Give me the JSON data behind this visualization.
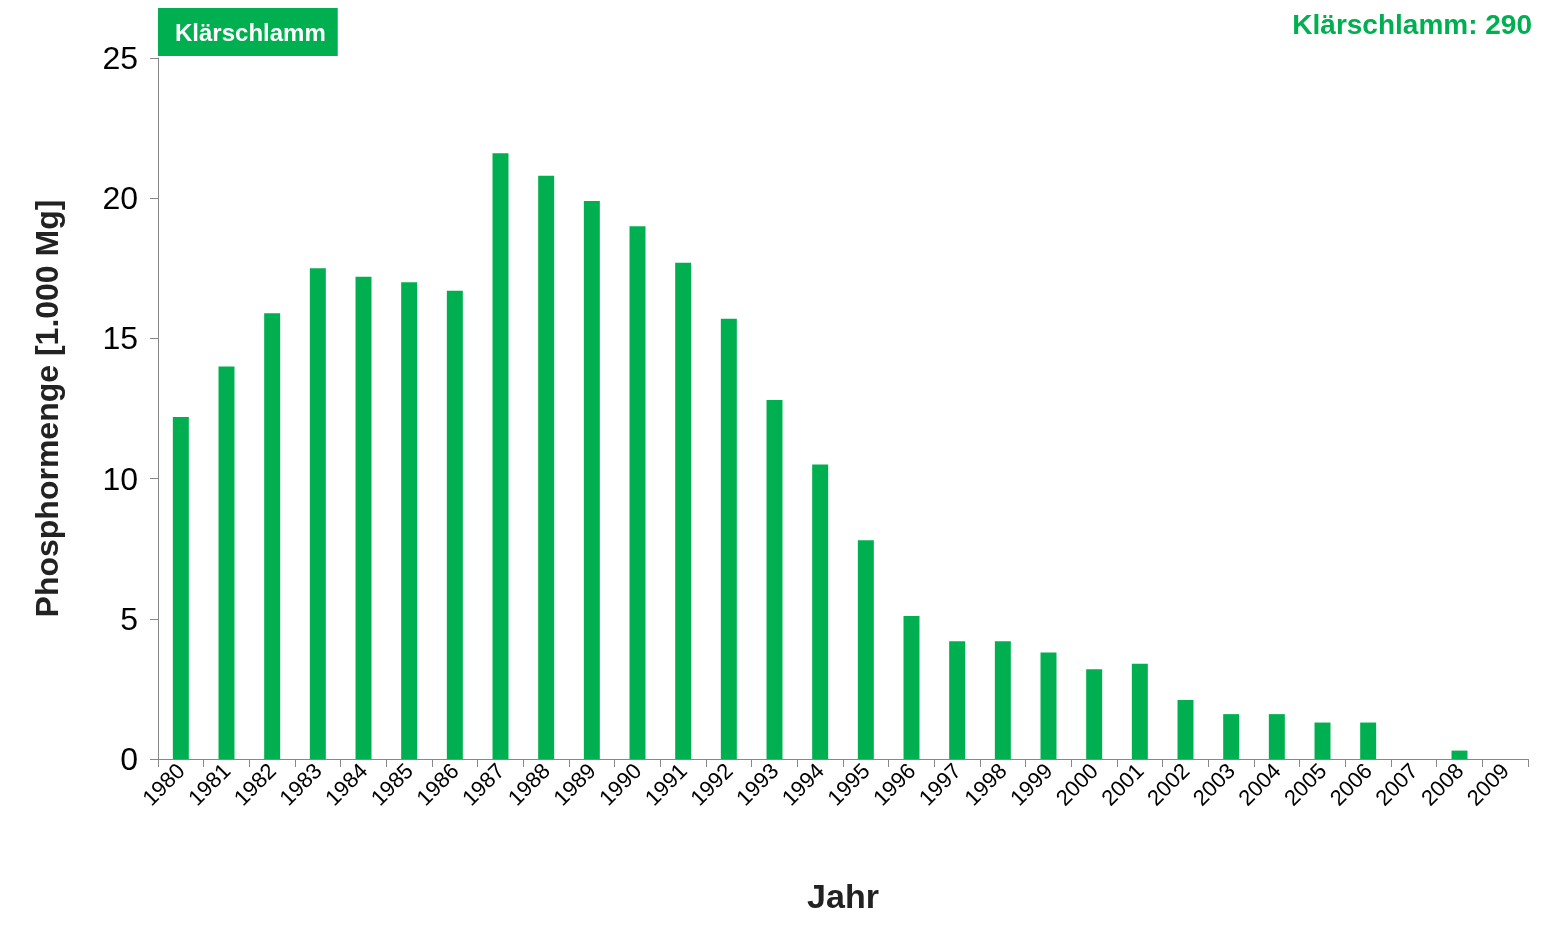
{
  "chart_data": {
    "type": "bar",
    "xlabel": "Jahr",
    "ylabel": "Phosphormenge [1.000 Mg]",
    "categories": [
      "1980",
      "1981",
      "1982",
      "1983",
      "1984",
      "1985",
      "1986",
      "1987",
      "1988",
      "1989",
      "1990",
      "1991",
      "1992",
      "1993",
      "1994",
      "1995",
      "1996",
      "1997",
      "1998",
      "1999",
      "2000",
      "2001",
      "2002",
      "2003",
      "2004",
      "2005",
      "2006",
      "2007",
      "2008",
      "2009"
    ],
    "series": [
      {
        "name": "Klärschlamm",
        "color": "#00b050",
        "values": [
          12.2,
          14.0,
          15.9,
          17.5,
          17.2,
          17.0,
          16.7,
          21.6,
          20.8,
          19.9,
          19.0,
          17.7,
          15.7,
          12.8,
          10.5,
          7.8,
          5.1,
          4.2,
          4.2,
          3.8,
          3.2,
          3.4,
          2.1,
          1.6,
          1.6,
          1.3,
          1.3,
          null,
          0.3,
          null
        ]
      }
    ],
    "ylim": [
      0,
      25
    ],
    "yticks": [
      0,
      5,
      10,
      15,
      20,
      25
    ],
    "grid": false,
    "legend": "top left",
    "annotations": [
      "Klärschlamm: 290"
    ]
  }
}
